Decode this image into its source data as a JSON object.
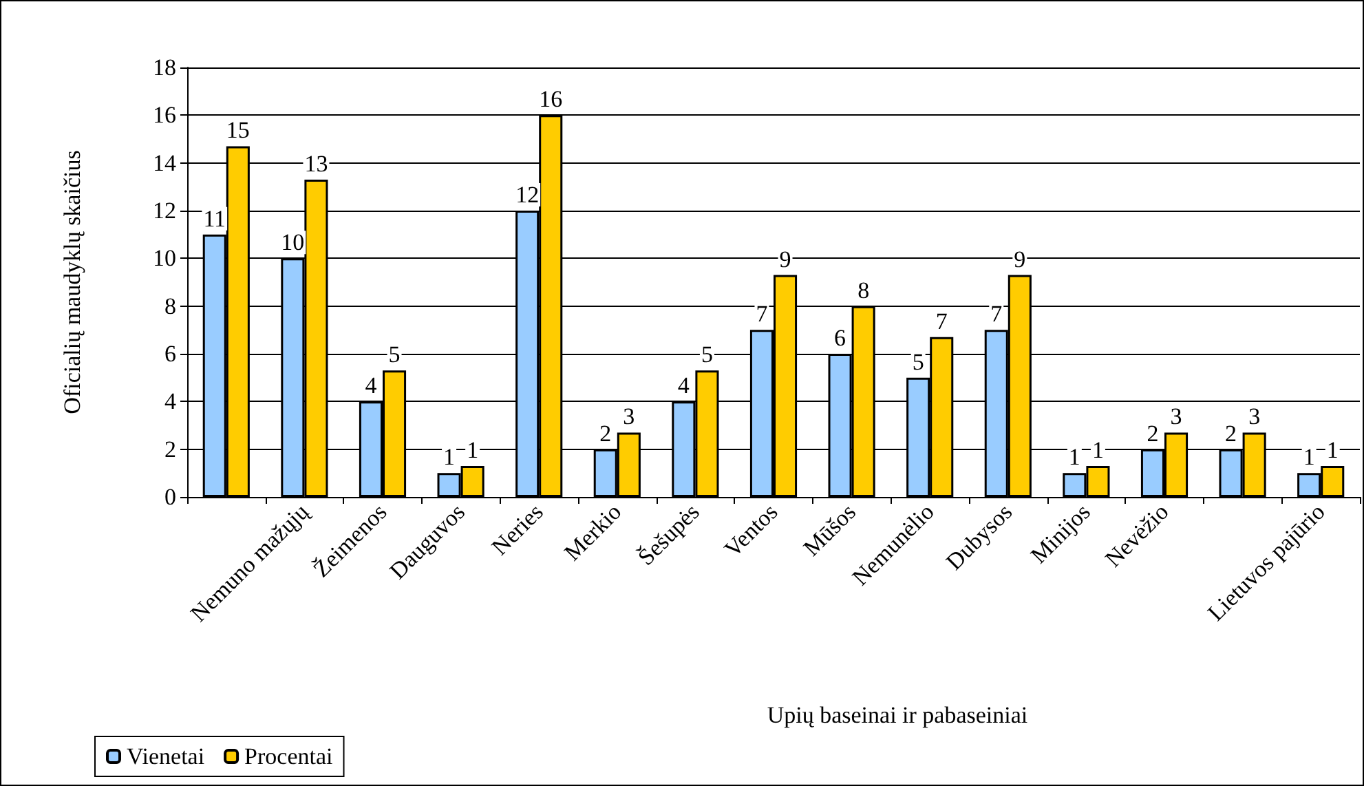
{
  "chart_data": {
    "type": "bar",
    "xlabel": "Upių baseinai ir pabaseiniai",
    "ylabel": "Oficialių maudyklų skaičius",
    "categories": [
      null,
      "Nemuno mažųjų",
      "Žeimenos",
      "Dauguvos",
      "Neries",
      "Merkio",
      "Šešupės",
      "Ventos",
      "Mūšos",
      "Nemunėlio",
      "Dubysos",
      "Minijos",
      "Nevėžio",
      null,
      "Lietuvos pajūrio"
    ],
    "series": [
      {
        "name": "Vienetai",
        "color": "#99ccff",
        "values": [
          11,
          10,
          4,
          1,
          12,
          2,
          4,
          7,
          6,
          5,
          7,
          1,
          2,
          2,
          1
        ],
        "value_labels": [
          "11",
          "10",
          "4",
          "1",
          "12",
          "2",
          "4",
          "7",
          "6",
          "5",
          "7",
          "1",
          "2",
          "2",
          "1"
        ]
      },
      {
        "name": "Procentai",
        "color": "#ffcc00",
        "values": [
          14.7,
          13.3,
          5.3,
          1.3,
          16,
          2.7,
          5.3,
          9.3,
          8,
          6.7,
          9.3,
          1.3,
          2.7,
          2.7,
          1.3
        ],
        "value_labels": [
          "15",
          "13",
          "5",
          "1",
          "16",
          "3",
          "5",
          "9",
          "8",
          "7",
          "9",
          "1",
          "3",
          "3",
          "1"
        ]
      }
    ],
    "ylim": [
      0,
      18
    ],
    "yticks": [
      0,
      2,
      4,
      6,
      8,
      10,
      12,
      14,
      16,
      18
    ],
    "grid": "y",
    "legend": "bottom left"
  }
}
